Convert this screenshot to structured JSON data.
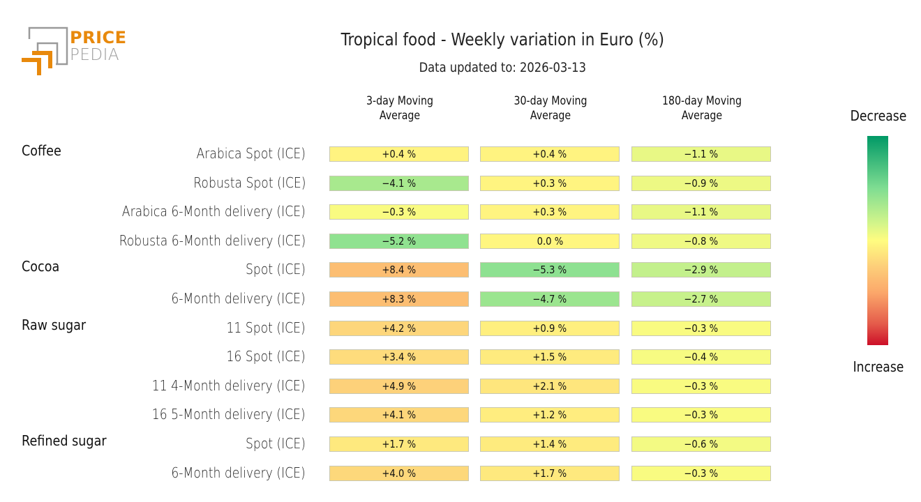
{
  "logo": {
    "line1": "PRICE",
    "line2": "PEDIA"
  },
  "chart_data": {
    "type": "table",
    "title": "Tropical food - Weekly variation in Euro (%)",
    "subtitle": "Data updated to: 2026-03-13",
    "columns": [
      "3-day Moving Average",
      "30-day Moving Average",
      "180-day Moving Average"
    ],
    "column_lines": [
      [
        "3-day Moving",
        "Average"
      ],
      [
        "30-day Moving",
        "Average"
      ],
      [
        "180-day Moving",
        "Average"
      ]
    ],
    "unit": "%",
    "groups": [
      {
        "name": "Coffee",
        "rows": [
          {
            "label": "Arabica Spot (ICE)",
            "values": [
              0.4,
              0.4,
              -1.1
            ]
          },
          {
            "label": "Robusta Spot (ICE)",
            "values": [
              -4.1,
              0.3,
              -0.9
            ]
          },
          {
            "label": "Arabica 6-Month delivery (ICE)",
            "values": [
              -0.3,
              0.3,
              -1.1
            ]
          },
          {
            "label": "Robusta 6-Month delivery (ICE)",
            "values": [
              -5.2,
              0.0,
              -0.8
            ]
          }
        ]
      },
      {
        "name": "Cocoa",
        "rows": [
          {
            "label": "Spot (ICE)",
            "values": [
              8.4,
              -5.3,
              -2.9
            ]
          },
          {
            "label": "6-Month delivery (ICE)",
            "values": [
              8.3,
              -4.7,
              -2.7
            ]
          }
        ]
      },
      {
        "name": "Raw sugar",
        "rows": [
          {
            "label": "11 Spot (ICE)",
            "values": [
              4.2,
              0.9,
              -0.3
            ]
          },
          {
            "label": "16 Spot (ICE)",
            "values": [
              3.4,
              1.5,
              -0.4
            ]
          },
          {
            "label": "11 4-Month delivery (ICE)",
            "values": [
              4.9,
              2.1,
              -0.3
            ]
          },
          {
            "label": "16 5-Month delivery (ICE)",
            "values": [
              4.1,
              1.2,
              -0.3
            ]
          }
        ]
      },
      {
        "name": "Refined sugar",
        "rows": [
          {
            "label": "Spot (ICE)",
            "values": [
              1.7,
              1.4,
              -0.6
            ]
          },
          {
            "label": "6-Month delivery (ICE)",
            "values": [
              4.0,
              1.7,
              -0.3
            ]
          }
        ]
      }
    ],
    "legend": {
      "top_label": "Decrease",
      "bottom_label": "Increase",
      "top_color": "#009966",
      "mid_color": "#fffc80",
      "bottom_color": "#cc0f28"
    }
  }
}
